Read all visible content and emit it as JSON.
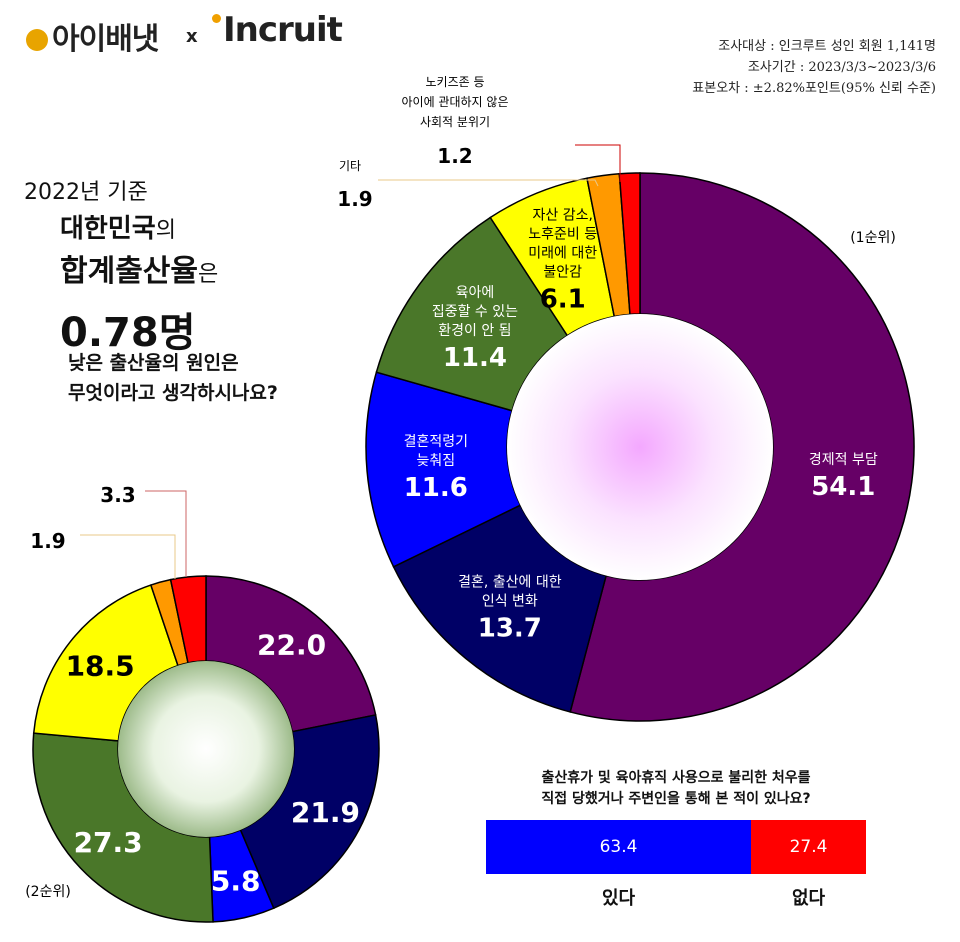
{
  "logos": {
    "left": "아이배냇",
    "sep": "x",
    "right": "Incruit"
  },
  "survey": {
    "target": "조사대상 : 인크루트 성인 회원 1,141명",
    "period": "조사기간 : 2023/3/3~2023/3/6",
    "error": "표본오차 : ±2.82%포인트(95% 신뢰 수준)"
  },
  "headline": {
    "line1": "2022년 기준",
    "line2_bold": "대한민국",
    "line2_suffix": "의",
    "line3_bold": "합계출산율",
    "line3_suffix": "은",
    "line4": "0.78명",
    "question_line1": "낮은 출산율의 원인은",
    "question_line2": "무엇이라고 생각하시나요?"
  },
  "callouts": {
    "big_noKids_l1": "노키즈존 등",
    "big_noKids_l2": "아이에 관대하지 않은",
    "big_noKids_l3": "사회적 분위기",
    "big_noKids_val": "1.2",
    "big_other_label": "기타",
    "big_other_val": "1.9",
    "small_a_val": "3.3",
    "small_b_val": "1.9"
  },
  "colors": {
    "purple": "#660066",
    "navy": "#000066",
    "blue": "#0000ff",
    "green": "#4a7729",
    "yellow": "#ffff00",
    "orange": "#ff9900",
    "red": "#ff0000"
  },
  "chart_data": [
    {
      "type": "pie",
      "title": "(1순위)",
      "slices": [
        {
          "label_lines": [
            "경제적 부담"
          ],
          "value": 54.1,
          "color": "#660066",
          "text_color": "#ffffff"
        },
        {
          "label_lines": [
            "결혼, 출산에 대한",
            "인식 변화"
          ],
          "value": 13.7,
          "color": "#000066",
          "text_color": "#ffffff"
        },
        {
          "label_lines": [
            "결혼적령기",
            "늦춰짐"
          ],
          "value": 11.6,
          "color": "#0000ff",
          "text_color": "#ffffff"
        },
        {
          "label_lines": [
            "육아에",
            "집중할 수 있는",
            "환경이 안 됨"
          ],
          "value": 11.4,
          "color": "#4a7729",
          "text_color": "#ffffff"
        },
        {
          "label_lines": [
            "자산 감소,",
            "노후준비 등",
            "미래에 대한",
            "불안감"
          ],
          "value": 6.1,
          "color": "#ffff00",
          "text_color": "#000000"
        },
        {
          "label_lines": [],
          "value": 1.9,
          "color": "#ff9900",
          "text_color": "#000000"
        },
        {
          "label_lines": [],
          "value": 1.2,
          "color": "#ff0000",
          "text_color": "#000000"
        }
      ]
    },
    {
      "type": "pie",
      "title": "(2순위)",
      "slices": [
        {
          "value": 22.0,
          "display": "22.0",
          "color": "#660066",
          "text_color": "#ffffff"
        },
        {
          "value": 21.9,
          "display": "21.9",
          "color": "#000066",
          "text_color": "#ffffff"
        },
        {
          "value": 5.8,
          "display": "5.8",
          "color": "#0000ff",
          "text_color": "#ffffff"
        },
        {
          "value": 27.3,
          "display": "27.3",
          "color": "#4a7729",
          "text_color": "#ffffff"
        },
        {
          "value": 18.5,
          "display": "18.5",
          "color": "#ffff00",
          "text_color": "#000000"
        },
        {
          "value": 1.9,
          "display": "",
          "color": "#ff9900",
          "text_color": "#000000"
        },
        {
          "value": 3.3,
          "display": "",
          "color": "#ff0000",
          "text_color": "#000000"
        }
      ]
    },
    {
      "type": "bar",
      "title": "출산휴가 및 육아휴직 사용으로 불리한 처우를 직접 당했거나 주변인을 통해 본 적이 있나요?",
      "title_line1": "출산휴가 및 육아휴직 사용으로 불리한 처우를",
      "title_line2": "직접 당했거나 주변인을 통해 본 적이 있나요?",
      "categories": [
        "있다",
        "없다"
      ],
      "values": [
        63.4,
        27.4
      ],
      "colors": [
        "#0000ff",
        "#ff0000"
      ]
    }
  ]
}
